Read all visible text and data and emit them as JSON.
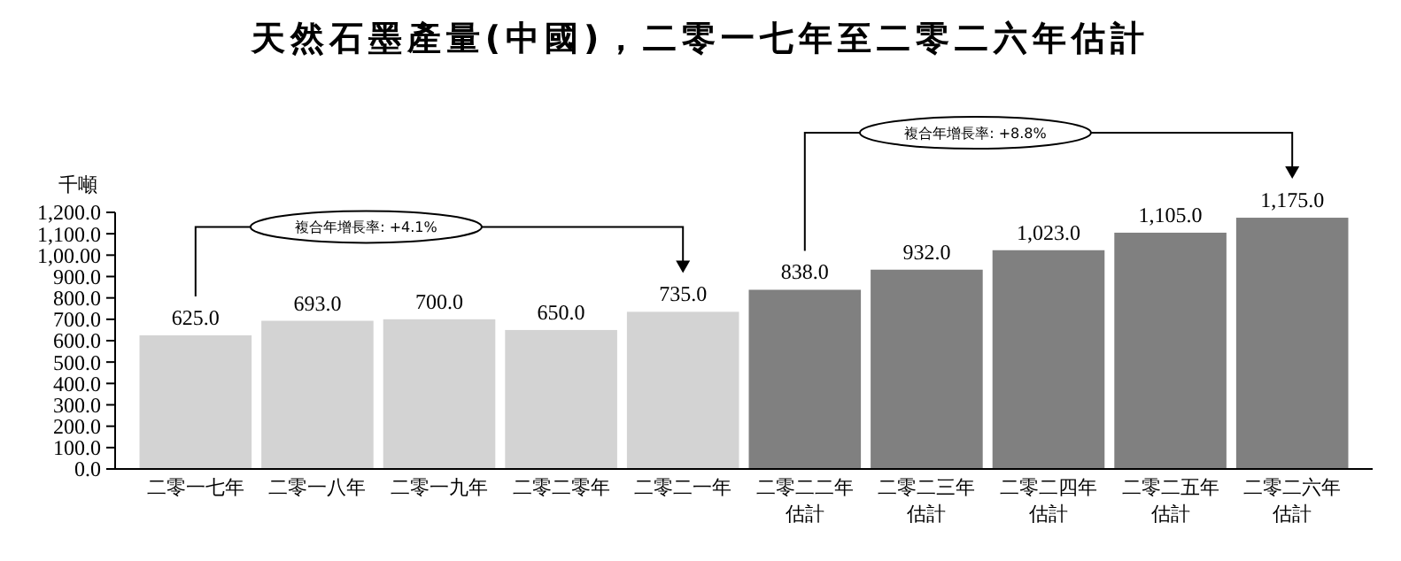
{
  "chart_data": {
    "type": "bar",
    "title": "天然石墨產量(中國)，二零一七年至二零二六年估計",
    "ylabel": "千噸",
    "categories": [
      "二零一七年",
      "二零一八年",
      "二零一九年",
      "二零二零年",
      "二零二一年",
      "二零二二年估計",
      "二零二三年估計",
      "二零二四年估計",
      "二零二五年估計",
      "二零二六年估計"
    ],
    "values": [
      625.0,
      693.0,
      700.0,
      650.0,
      735.0,
      838.0,
      932.0,
      1023.0,
      1105.0,
      1175.0
    ],
    "value_labels": [
      "625.0",
      "693.0",
      "700.0",
      "650.0",
      "735.0",
      "838.0",
      "932.0",
      "1,023.0",
      "1,105.0",
      "1,175.0"
    ],
    "colors": [
      "#d3d3d3",
      "#d3d3d3",
      "#d3d3d3",
      "#d3d3d3",
      "#d3d3d3",
      "#808080",
      "#808080",
      "#808080",
      "#808080",
      "#808080"
    ],
    "ylim": [
      0,
      1200
    ],
    "yticks": [
      {
        "value": 0,
        "label": "0.0"
      },
      {
        "value": 100,
        "label": "100.0"
      },
      {
        "value": 200,
        "label": "200.0"
      },
      {
        "value": 300,
        "label": "300.0"
      },
      {
        "value": 400,
        "label": "400.0"
      },
      {
        "value": 500,
        "label": "500.0"
      },
      {
        "value": 600,
        "label": "600.0"
      },
      {
        "value": 700,
        "label": "700.0"
      },
      {
        "value": 800,
        "label": "800.0"
      },
      {
        "value": 900,
        "label": "900.0"
      },
      {
        "value": 1000,
        "label": "1,00.00"
      },
      {
        "value": 1100,
        "label": "1,100.0"
      },
      {
        "value": 1200,
        "label": "1,200.0"
      }
    ],
    "grid": false,
    "annotations": [
      "複合年增長率: +4.1%",
      "複合年增長率: +8.8%"
    ]
  }
}
